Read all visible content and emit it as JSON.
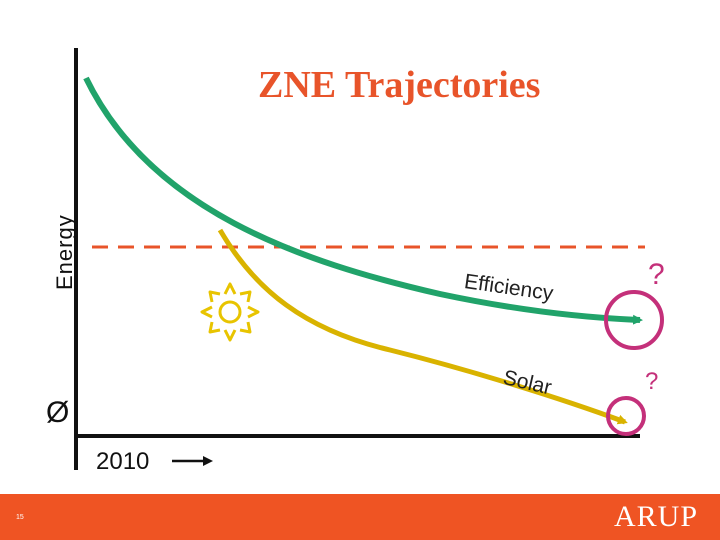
{
  "slide": {
    "title": "ZNE Trajectories",
    "y_axis_label": "Energy",
    "zero_label": "Ø",
    "start_year": "2010",
    "curves": [
      {
        "label": "Efficiency",
        "question_mark": "?"
      },
      {
        "label": "Solar",
        "question_mark": "?"
      }
    ],
    "page_number": "15",
    "logo_text": "ARUP"
  },
  "colors": {
    "title": "#e8542a",
    "efficiency_curve": "#21a36a",
    "solar_curve": "#d9b300",
    "dashed_line": "#e8542a",
    "highlight_circle": "#c4307a",
    "footer": "#ef5423",
    "sun_icon": "#e8c400",
    "axes": "#111111"
  },
  "icons": [
    "sun-icon",
    "arrow-right-icon"
  ]
}
